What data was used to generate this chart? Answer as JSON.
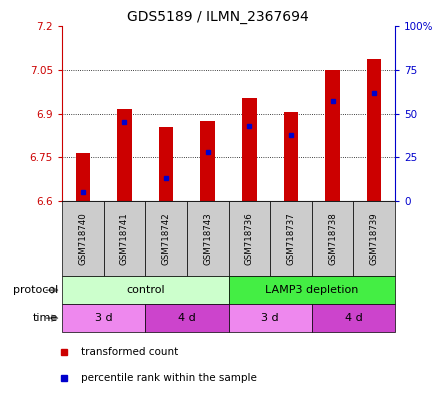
{
  "title": "GDS5189 / ILMN_2367694",
  "samples": [
    "GSM718740",
    "GSM718741",
    "GSM718742",
    "GSM718743",
    "GSM718736",
    "GSM718737",
    "GSM718738",
    "GSM718739"
  ],
  "bar_tops": [
    6.765,
    6.915,
    6.855,
    6.875,
    6.955,
    6.905,
    7.048,
    7.088
  ],
  "bar_bottom": 6.6,
  "percentile_values": [
    5.0,
    45.0,
    13.0,
    28.0,
    43.0,
    38.0,
    57.0,
    62.0
  ],
  "ylim_left": [
    6.6,
    7.2
  ],
  "ylim_right": [
    0,
    100
  ],
  "yticks_left": [
    6.6,
    6.75,
    6.9,
    7.05,
    7.2
  ],
  "ytick_labels_left": [
    "6.6",
    "6.75",
    "6.9",
    "7.05",
    "7.2"
  ],
  "yticks_right": [
    0,
    25,
    50,
    75,
    100
  ],
  "ytick_labels_right": [
    "0",
    "25",
    "50",
    "75",
    "100%"
  ],
  "bar_color": "#cc0000",
  "dot_color": "#0000cc",
  "protocol_groups": [
    {
      "label": "control",
      "start": 0,
      "end": 4,
      "color": "#ccffcc"
    },
    {
      "label": "LAMP3 depletion",
      "start": 4,
      "end": 8,
      "color": "#44ee44"
    }
  ],
  "time_groups": [
    {
      "label": "3 d",
      "start": 0,
      "end": 2,
      "color": "#ee88ee"
    },
    {
      "label": "4 d",
      "start": 2,
      "end": 4,
      "color": "#cc44cc"
    },
    {
      "label": "3 d",
      "start": 4,
      "end": 6,
      "color": "#ee88ee"
    },
    {
      "label": "4 d",
      "start": 6,
      "end": 8,
      "color": "#cc44cc"
    }
  ],
  "protocol_label": "protocol",
  "time_label": "time"
}
